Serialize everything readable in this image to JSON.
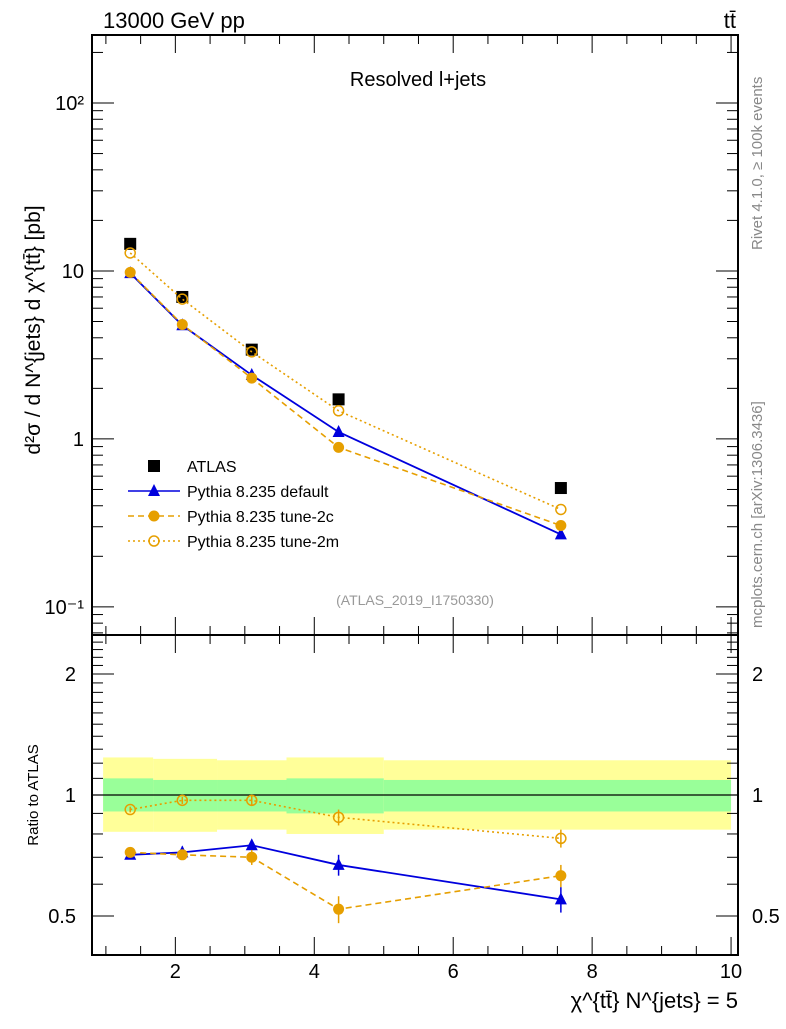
{
  "header": {
    "left": "13000 GeV pp",
    "right": "tt̄"
  },
  "side": {
    "rivet": "Rivet 4.1.0, ≥ 100k events",
    "mcplots": "mcplots.cern.ch [arXiv:1306.3436]"
  },
  "chart_data": [
    {
      "type": "line",
      "title": "Resolved l+jets",
      "ylabel": "d²σ / d N^{jets} d χ^{tt̄} [pb]",
      "xlabel": "χ^{tt̄} N^{jets} = 5",
      "yscale": "log",
      "ylim": [
        0.068,
        254
      ],
      "xlim": [
        0.8,
        10.1
      ],
      "yticks": [
        {
          "v": 100,
          "label": "10²"
        },
        {
          "v": 10,
          "label": "10"
        },
        {
          "v": 1,
          "label": "1"
        },
        {
          "v": 0.1,
          "label": "10⁻¹"
        }
      ],
      "annotation": "(ATLAS_2019_I1750330)",
      "x": [
        1.35,
        2.1,
        3.1,
        4.35,
        7.55
      ],
      "series": [
        {
          "name": "ATLAS",
          "values": [
            14.5,
            7.0,
            3.4,
            1.72,
            0.51
          ],
          "color": "#000000",
          "marker": "square"
        },
        {
          "name": "Pythia 8.235 default",
          "values": [
            9.7,
            4.75,
            2.4,
            1.1,
            0.27
          ],
          "color": "#0000dd",
          "marker": "triangle",
          "dash": ""
        },
        {
          "name": "Pythia 8.235 tune-2c",
          "values": [
            9.8,
            4.8,
            2.3,
            0.89,
            0.305
          ],
          "color": "#e69f00",
          "marker": "dot",
          "dash": "6,4"
        },
        {
          "name": "Pythia 8.235 tune-2m",
          "values": [
            12.8,
            6.8,
            3.3,
            1.47,
            0.38
          ],
          "color": "#e69f00",
          "marker": "circle",
          "dash": "2,3"
        }
      ]
    },
    {
      "type": "line",
      "ylabel": "Ratio to ATLAS",
      "yscale": "log",
      "ylim": [
        0.4,
        2.5
      ],
      "xlim": [
        0.8,
        10.1
      ],
      "yticks": [
        {
          "v": 2,
          "label": "2"
        },
        {
          "v": 1,
          "label": "1"
        },
        {
          "v": 0.5,
          "label": "0.5"
        }
      ],
      "xticks": [
        {
          "v": 2,
          "label": "2"
        },
        {
          "v": 4,
          "label": "4"
        },
        {
          "v": 6,
          "label": "6"
        },
        {
          "v": 8,
          "label": "8"
        },
        {
          "v": 10,
          "label": "10"
        }
      ],
      "bin_edges": [
        0.96,
        1.68,
        2.6,
        3.6,
        5.0,
        10.0
      ],
      "band_green": [
        [
          0.91,
          1.1
        ],
        [
          0.91,
          1.09
        ],
        [
          0.91,
          1.09
        ],
        [
          0.9,
          1.1
        ],
        [
          0.91,
          1.09
        ]
      ],
      "band_yellow": [
        [
          0.81,
          1.24
        ],
        [
          0.81,
          1.23
        ],
        [
          0.82,
          1.22
        ],
        [
          0.8,
          1.24
        ],
        [
          0.82,
          1.22
        ]
      ],
      "x": [
        1.35,
        2.1,
        3.1,
        4.35,
        7.55
      ],
      "series": [
        {
          "name": "Pythia 8.235 default",
          "values": [
            0.71,
            0.72,
            0.75,
            0.67,
            0.55
          ],
          "err": [
            0.015,
            0.025,
            0.025,
            0.04,
            0.04
          ]
        },
        {
          "name": "Pythia 8.235 tune-2c",
          "values": [
            0.72,
            0.71,
            0.7,
            0.52,
            0.63
          ],
          "err": [
            0.015,
            0.02,
            0.03,
            0.04,
            0.04
          ]
        },
        {
          "name": "Pythia 8.235 tune-2m",
          "values": [
            0.92,
            0.97,
            0.97,
            0.88,
            0.78
          ],
          "err": [
            0.015,
            0.02,
            0.03,
            0.04,
            0.04
          ]
        }
      ]
    }
  ]
}
